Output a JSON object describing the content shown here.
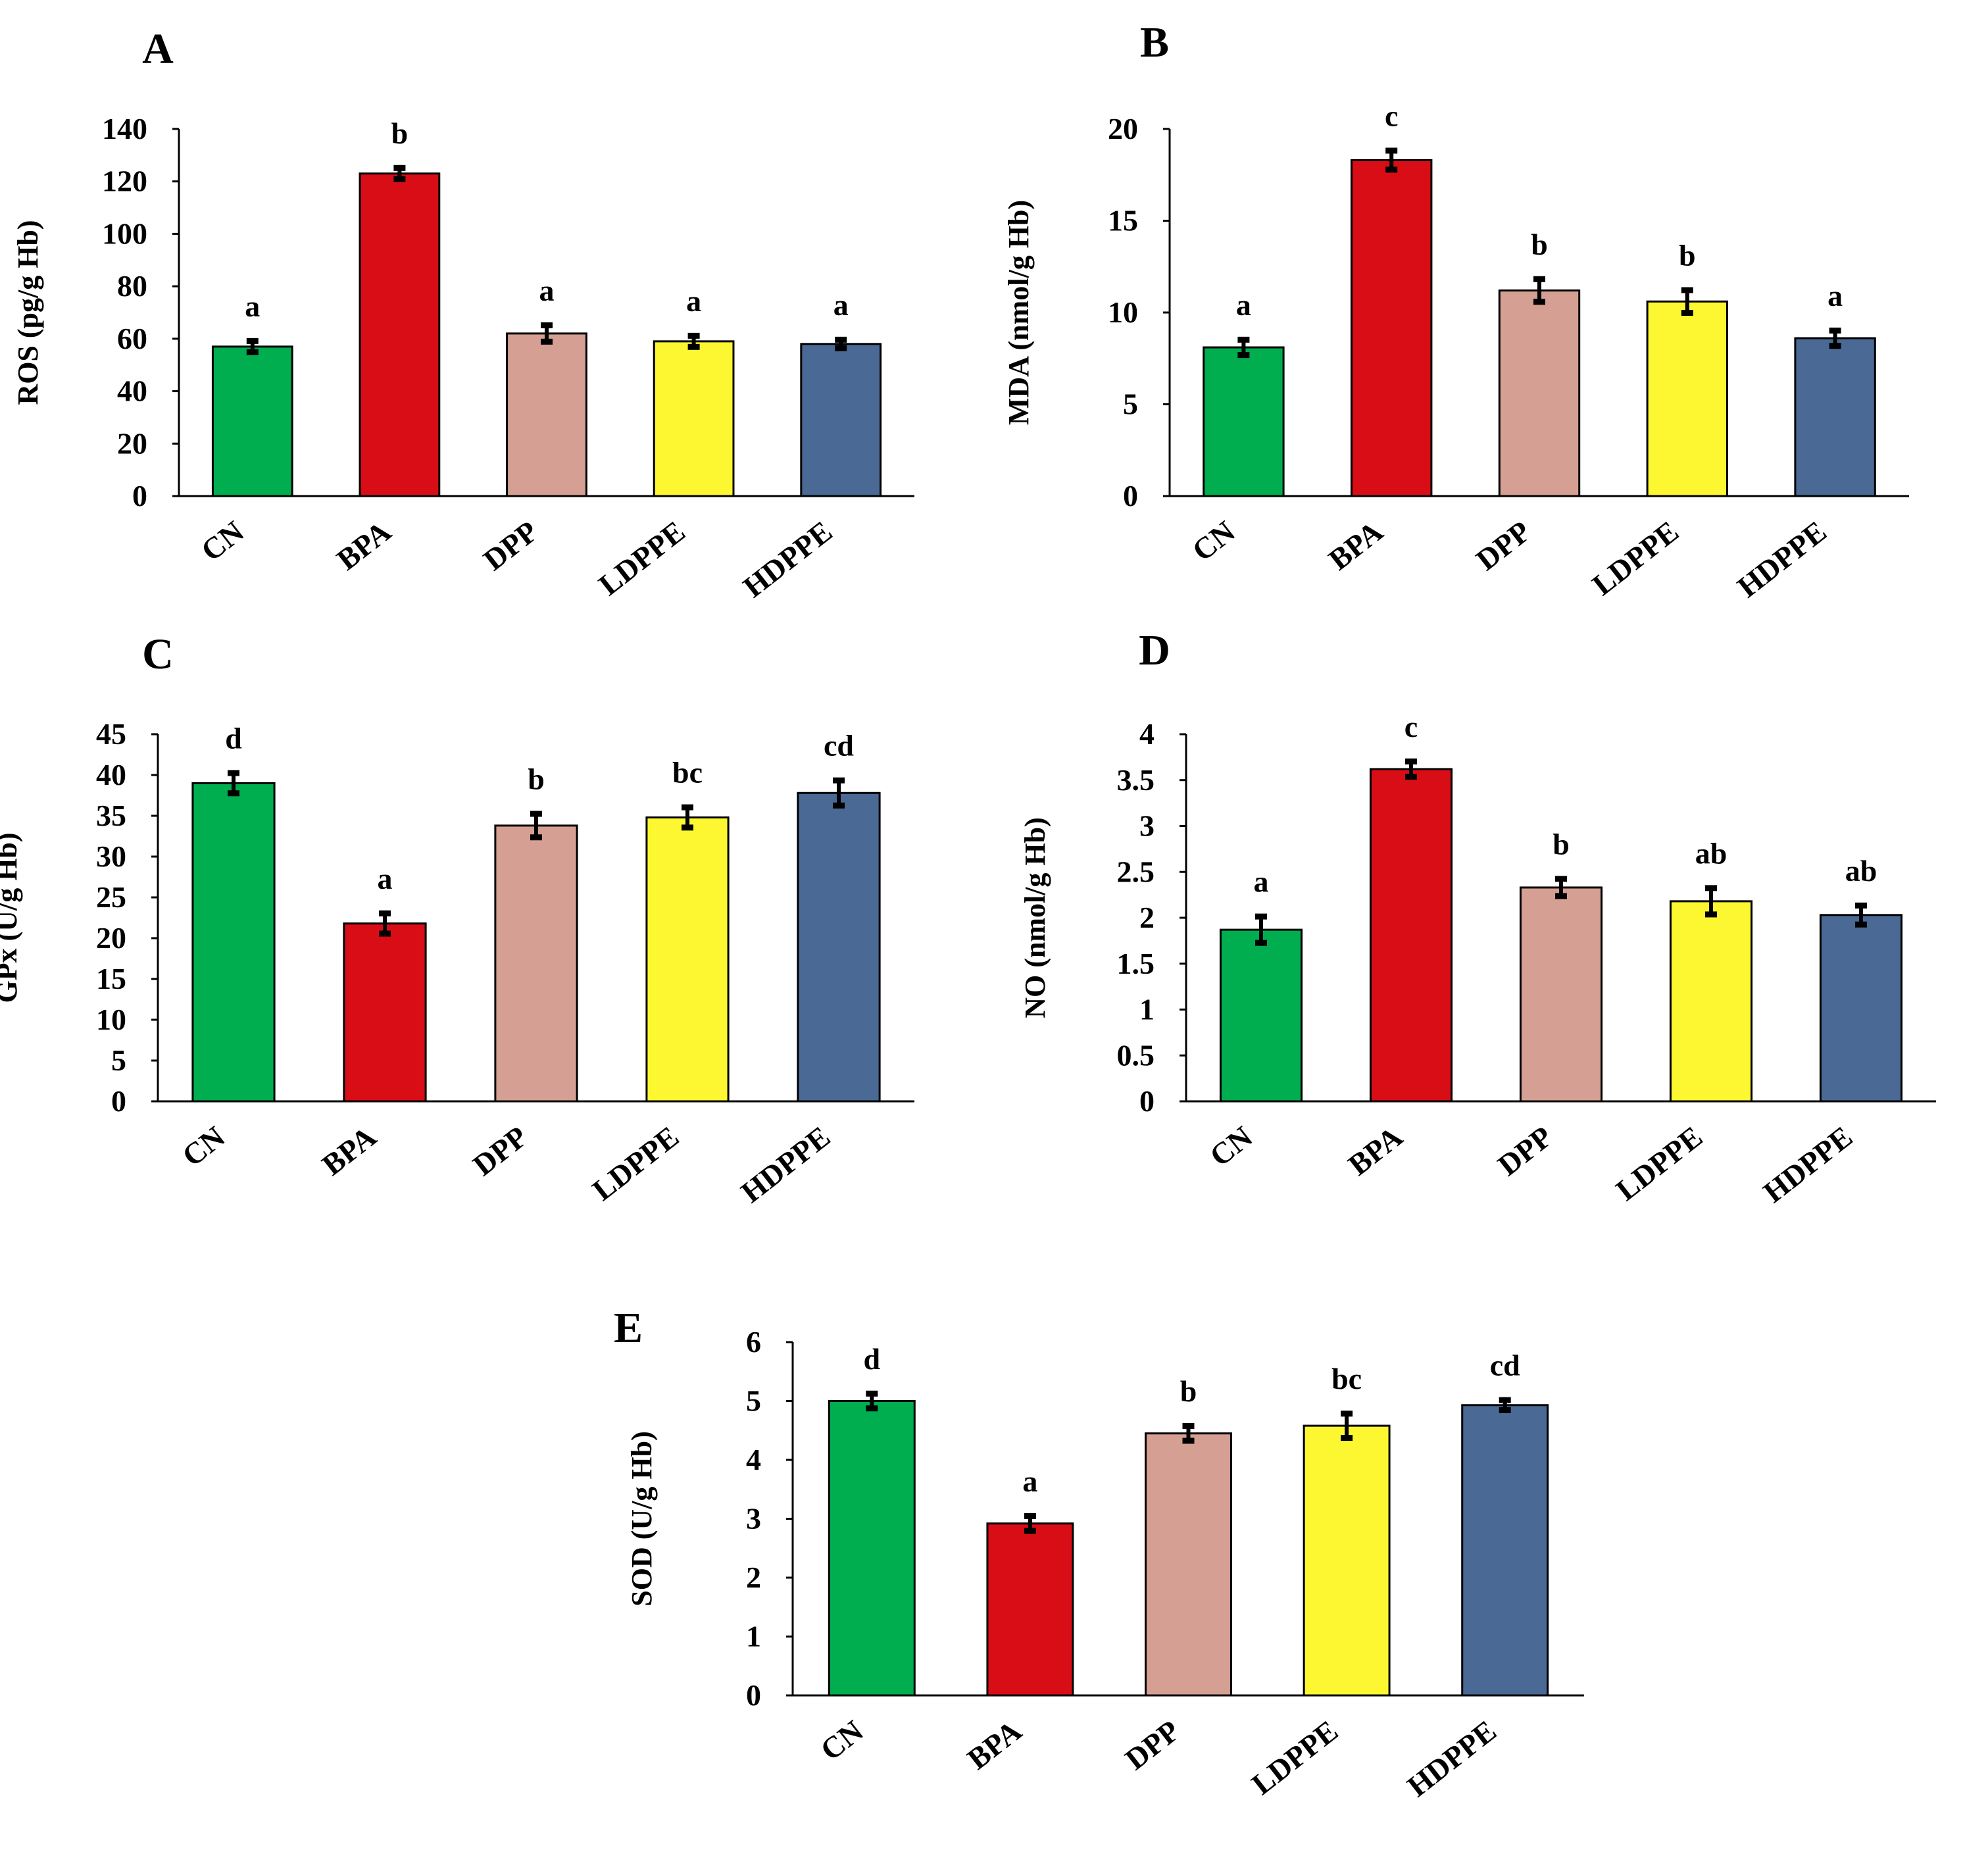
{
  "categories": [
    "CN",
    "BPA",
    "DPP",
    "LDPPE",
    "HDPPE"
  ],
  "colors": [
    "#00ad4f",
    "#d90d16",
    "#d5a093",
    "#fdf732",
    "#4a6a95"
  ],
  "chart_data": [
    {
      "type": "bar",
      "panel": "A",
      "title": "",
      "xlabel": "",
      "ylabel": "ROS (pg/g Hb)",
      "ylim": [
        0,
        140
      ],
      "yticks": [
        "0",
        "20",
        "40",
        "60",
        "80",
        "100",
        "120",
        "140"
      ],
      "categories": [
        "CN",
        "BPA",
        "DPP",
        "LDPPE",
        "HDPPE"
      ],
      "values": [
        57,
        123,
        62,
        59,
        58
      ],
      "errors": [
        2,
        2,
        3,
        2,
        1.5
      ],
      "letters": [
        "a",
        "b",
        "a",
        "a",
        "a"
      ]
    },
    {
      "type": "bar",
      "panel": "B",
      "title": "",
      "xlabel": "",
      "ylabel": "MDA (nmol/g Hb)",
      "ylim": [
        0,
        20
      ],
      "yticks": [
        "0",
        "5",
        "10",
        "15",
        "20"
      ],
      "categories": [
        "CN",
        "BPA",
        "DPP",
        "LDPPE",
        "HDPPE"
      ],
      "values": [
        8.1,
        18.3,
        11.2,
        10.6,
        8.6
      ],
      "errors": [
        0.4,
        0.5,
        0.6,
        0.6,
        0.4
      ],
      "letters": [
        "a",
        "c",
        "b",
        "b",
        "a"
      ]
    },
    {
      "type": "bar",
      "panel": "C",
      "title": "",
      "xlabel": "",
      "ylabel": "GPx (U/g Hb)",
      "ylim": [
        0,
        45
      ],
      "yticks": [
        "0",
        "5",
        "10",
        "15",
        "20",
        "25",
        "30",
        "35",
        "40",
        "45"
      ],
      "categories": [
        "CN",
        "BPA",
        "DPP",
        "LDPPE",
        "HDPPE"
      ],
      "values": [
        39,
        21.8,
        33.8,
        34.8,
        37.8
      ],
      "errors": [
        1.2,
        1.2,
        1.4,
        1.2,
        1.5
      ],
      "letters": [
        "d",
        "a",
        "b",
        "bc",
        "cd"
      ]
    },
    {
      "type": "bar",
      "panel": "D",
      "title": "",
      "xlabel": "",
      "ylabel": "NO (nmol/g Hb)",
      "ylim": [
        0,
        4
      ],
      "yticks": [
        "0",
        "0.5",
        "1",
        "1.5",
        "2",
        "2.5",
        "3",
        "3.5",
        "4"
      ],
      "categories": [
        "CN",
        "BPA",
        "DPP",
        "LDPPE",
        "HDPPE"
      ],
      "values": [
        1.87,
        3.62,
        2.33,
        2.18,
        2.03
      ],
      "errors": [
        0.14,
        0.08,
        0.09,
        0.14,
        0.1
      ],
      "letters": [
        "a",
        "c",
        "b",
        "ab",
        "ab"
      ]
    },
    {
      "type": "bar",
      "panel": "E",
      "title": "",
      "xlabel": "",
      "ylabel": "SOD (U/g Hb)",
      "ylim": [
        0,
        6
      ],
      "yticks": [
        "0",
        "1",
        "2",
        "3",
        "4",
        "5",
        "6"
      ],
      "categories": [
        "CN",
        "BPA",
        "DPP",
        "LDPPE",
        "HDPPE"
      ],
      "values": [
        5.0,
        2.92,
        4.45,
        4.58,
        4.93
      ],
      "errors": [
        0.12,
        0.12,
        0.12,
        0.2,
        0.08
      ],
      "letters": [
        "d",
        "a",
        "b",
        "bc",
        "cd"
      ]
    }
  ]
}
